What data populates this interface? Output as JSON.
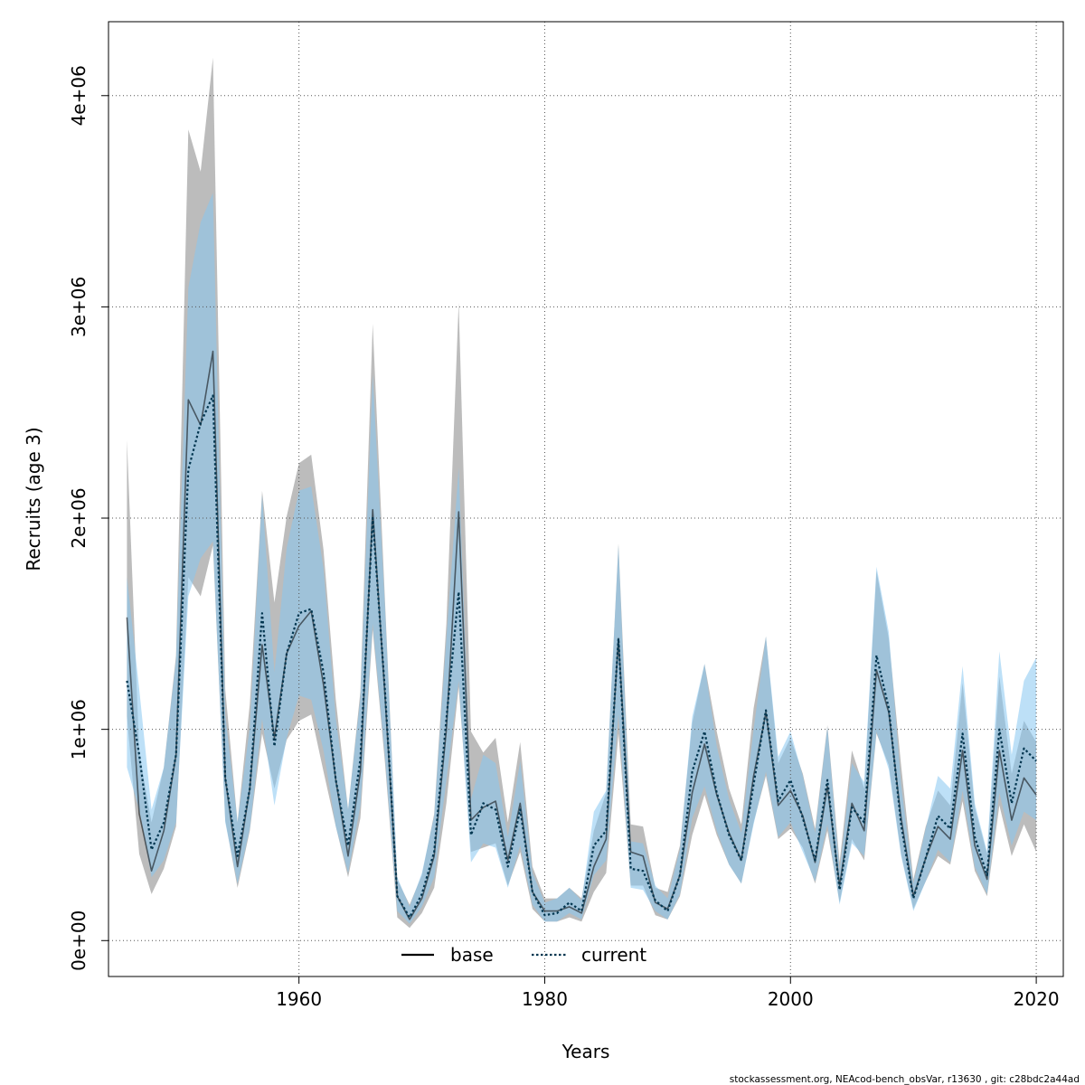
{
  "chart_data": {
    "type": "line",
    "xlabel": "Years",
    "ylabel": "Recruits (age 3)",
    "xlim": [
      1944.5,
      2022.2
    ],
    "ylim": [
      -170000,
      4350000
    ],
    "x_ticks": [
      1960,
      1980,
      2000,
      2020
    ],
    "x_tick_labels": [
      "1960",
      "1980",
      "2000",
      "2020"
    ],
    "y_ticks": [
      0,
      1000000,
      2000000,
      3000000,
      4000000
    ],
    "y_tick_labels": [
      "0e+00",
      "1e+06",
      "2e+06",
      "3e+06",
      "4e+06"
    ],
    "grid": true,
    "legend_position": "bottom",
    "footer": "stockassessment.org, NEAcod-bench_obsVar, r13630 , git: c28bdc2a44ad",
    "colors": {
      "base_line": "#000000",
      "base_band": "#8f8f8f",
      "current_line": "#00354f",
      "current_band": "#87c6f0",
      "grid": "#555555"
    },
    "x": [
      1946,
      1947,
      1948,
      1949,
      1950,
      1951,
      1952,
      1953,
      1954,
      1955,
      1956,
      1957,
      1958,
      1959,
      1960,
      1961,
      1962,
      1963,
      1964,
      1965,
      1966,
      1967,
      1968,
      1969,
      1970,
      1971,
      1972,
      1973,
      1974,
      1975,
      1976,
      1977,
      1978,
      1979,
      1980,
      1981,
      1982,
      1983,
      1984,
      1985,
      1986,
      1987,
      1988,
      1989,
      1990,
      1991,
      1992,
      1993,
      1994,
      1995,
      1996,
      1997,
      1998,
      1999,
      2000,
      2001,
      2002,
      2003,
      2004,
      2005,
      2006,
      2007,
      2008,
      2009,
      2010,
      2011,
      2012,
      2013,
      2014,
      2015,
      2016,
      2017,
      2018,
      2019,
      2020
    ],
    "series": [
      {
        "name": "base",
        "values": [
          1530000,
          600000,
          330000,
          520000,
          880000,
          2560000,
          2440000,
          2790000,
          770000,
          350000,
          720000,
          1400000,
          960000,
          1360000,
          1490000,
          1560000,
          1210000,
          760000,
          400000,
          800000,
          2040000,
          1160000,
          210000,
          100000,
          200000,
          400000,
          1000000,
          2030000,
          570000,
          630000,
          660000,
          380000,
          650000,
          230000,
          140000,
          140000,
          160000,
          130000,
          350000,
          480000,
          1430000,
          420000,
          400000,
          180000,
          150000,
          310000,
          700000,
          930000,
          690000,
          510000,
          380000,
          780000,
          1080000,
          640000,
          710000,
          590000,
          370000,
          730000,
          260000,
          650000,
          520000,
          1280000,
          1080000,
          580000,
          210000,
          390000,
          540000,
          480000,
          900000,
          450000,
          290000,
          900000,
          570000,
          770000,
          690000
        ],
        "lower": [
          1060000,
          410000,
          220000,
          340000,
          540000,
          1720000,
          1630000,
          1870000,
          570000,
          250000,
          520000,
          980000,
          720000,
          950000,
          1040000,
          1070000,
          800000,
          540000,
          300000,
          580000,
          1470000,
          840000,
          110000,
          60000,
          130000,
          250000,
          650000,
          1200000,
          420000,
          440000,
          460000,
          260000,
          420000,
          150000,
          90000,
          90000,
          110000,
          90000,
          230000,
          320000,
          980000,
          260000,
          260000,
          120000,
          100000,
          210000,
          500000,
          690000,
          500000,
          360000,
          270000,
          560000,
          780000,
          480000,
          530000,
          440000,
          270000,
          520000,
          180000,
          480000,
          380000,
          980000,
          830000,
          410000,
          150000,
          280000,
          400000,
          360000,
          660000,
          330000,
          210000,
          640000,
          400000,
          550000,
          420000
        ],
        "upper": [
          2370000,
          890000,
          560000,
          820000,
          1350000,
          3840000,
          3640000,
          4180000,
          1190000,
          560000,
          1120000,
          2130000,
          1600000,
          2010000,
          2260000,
          2300000,
          1850000,
          1140000,
          620000,
          1180000,
          2920000,
          1610000,
          290000,
          170000,
          310000,
          600000,
          1500000,
          3020000,
          990000,
          890000,
          960000,
          560000,
          940000,
          350000,
          200000,
          200000,
          250000,
          200000,
          520000,
          700000,
          1880000,
          550000,
          540000,
          250000,
          230000,
          450000,
          1030000,
          1310000,
          990000,
          720000,
          550000,
          1100000,
          1440000,
          840000,
          960000,
          790000,
          530000,
          1020000,
          370000,
          900000,
          720000,
          1750000,
          1430000,
          830000,
          290000,
          540000,
          710000,
          640000,
          1220000,
          630000,
          410000,
          1250000,
          790000,
          1040000,
          940000
        ]
      },
      {
        "name": "current",
        "values": [
          1230000,
          880000,
          430000,
          560000,
          880000,
          2230000,
          2450000,
          2580000,
          770000,
          400000,
          720000,
          1550000,
          920000,
          1360000,
          1550000,
          1570000,
          1270000,
          760000,
          450000,
          860000,
          2000000,
          1180000,
          210000,
          110000,
          220000,
          420000,
          1050000,
          1650000,
          500000,
          650000,
          620000,
          350000,
          620000,
          230000,
          120000,
          130000,
          180000,
          140000,
          450000,
          520000,
          1430000,
          340000,
          330000,
          190000,
          140000,
          310000,
          800000,
          990000,
          700000,
          500000,
          380000,
          740000,
          1090000,
          660000,
          760000,
          580000,
          380000,
          760000,
          240000,
          630000,
          560000,
          1350000,
          1100000,
          550000,
          200000,
          390000,
          590000,
          530000,
          980000,
          490000,
          310000,
          1000000,
          650000,
          910000,
          850000
        ],
        "lower": [
          820000,
          620000,
          300000,
          380000,
          560000,
          1630000,
          1810000,
          1890000,
          560000,
          270000,
          530000,
          1050000,
          640000,
          960000,
          1160000,
          1140000,
          900000,
          540000,
          320000,
          640000,
          1500000,
          870000,
          140000,
          80000,
          160000,
          300000,
          760000,
          1230000,
          370000,
          460000,
          440000,
          250000,
          450000,
          170000,
          90000,
          90000,
          130000,
          100000,
          310000,
          380000,
          1070000,
          250000,
          240000,
          140000,
          100000,
          220000,
          580000,
          730000,
          520000,
          360000,
          270000,
          550000,
          800000,
          490000,
          560000,
          420000,
          280000,
          550000,
          170000,
          460000,
          400000,
          990000,
          810000,
          400000,
          140000,
          280000,
          430000,
          370000,
          710000,
          350000,
          220000,
          700000,
          450000,
          610000,
          570000
        ],
        "upper": [
          1720000,
          1190000,
          620000,
          820000,
          1330000,
          3090000,
          3400000,
          3540000,
          1070000,
          560000,
          1010000,
          2110000,
          1270000,
          1860000,
          2130000,
          2150000,
          1760000,
          1050000,
          620000,
          1150000,
          2680000,
          1580000,
          300000,
          160000,
          320000,
          590000,
          1430000,
          2240000,
          670000,
          880000,
          840000,
          490000,
          850000,
          320000,
          180000,
          200000,
          250000,
          190000,
          610000,
          710000,
          1870000,
          470000,
          460000,
          260000,
          200000,
          430000,
          1060000,
          1310000,
          920000,
          670000,
          510000,
          1000000,
          1440000,
          870000,
          990000,
          780000,
          510000,
          1010000,
          330000,
          840000,
          750000,
          1770000,
          1460000,
          740000,
          270000,
          530000,
          780000,
          720000,
          1300000,
          650000,
          420000,
          1370000,
          880000,
          1230000,
          1340000
        ]
      }
    ]
  }
}
